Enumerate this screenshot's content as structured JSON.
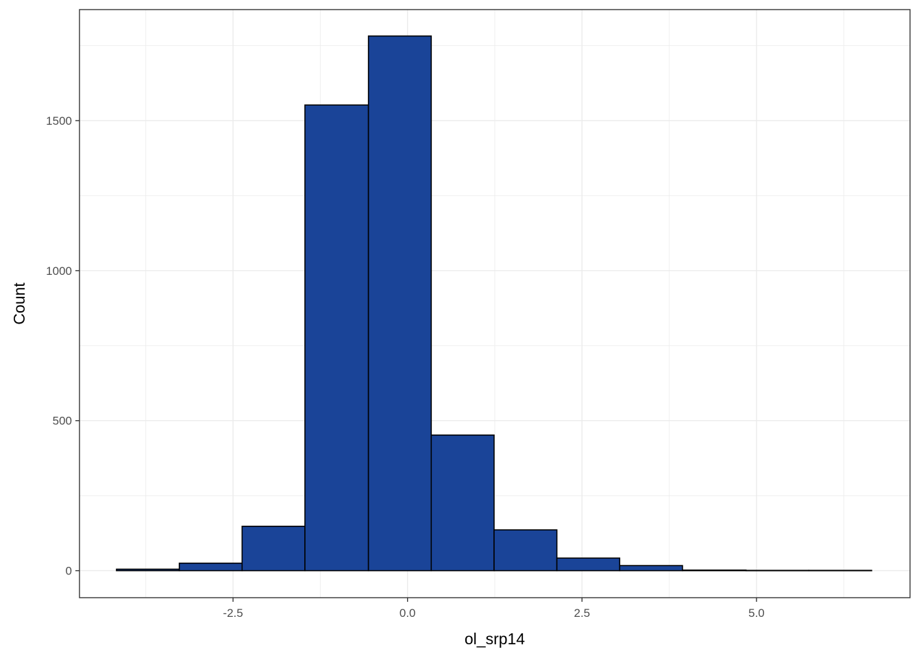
{
  "chart_data": {
    "type": "histogram",
    "title": "",
    "xlabel": "ol_srp14",
    "ylabel": "Count",
    "bins": [
      {
        "x0": -4.17,
        "x1": -3.27,
        "count": 5
      },
      {
        "x0": -3.27,
        "x1": -2.37,
        "count": 25
      },
      {
        "x0": -2.37,
        "x1": -1.47,
        "count": 148
      },
      {
        "x0": -1.47,
        "x1": -0.56,
        "count": 1552
      },
      {
        "x0": -0.56,
        "x1": 0.34,
        "count": 1782
      },
      {
        "x0": 0.34,
        "x1": 1.24,
        "count": 452
      },
      {
        "x0": 1.24,
        "x1": 2.14,
        "count": 136
      },
      {
        "x0": 2.14,
        "x1": 3.04,
        "count": 42
      },
      {
        "x0": 3.04,
        "x1": 3.94,
        "count": 17
      },
      {
        "x0": 3.94,
        "x1": 4.85,
        "count": 2
      },
      {
        "x0": 4.85,
        "x1": 5.75,
        "count": 1
      },
      {
        "x0": 5.75,
        "x1": 6.65,
        "count": 1
      }
    ],
    "xlim": [
      -4.7,
      7.2
    ],
    "ylim": [
      -90,
      1870
    ],
    "x_ticks": [
      -2.5,
      0.0,
      2.5,
      5.0
    ],
    "x_tick_labels": [
      "-2.5",
      "0.0",
      "2.5",
      "5.0"
    ],
    "y_ticks": [
      0,
      500,
      1000,
      1500
    ],
    "y_tick_labels": [
      "0",
      "500",
      "1000",
      "1500"
    ],
    "grid": true,
    "colors": {
      "fill": "#1a4498",
      "outline": "#000000",
      "grid": "#ebebeb",
      "panel_border": "#333333"
    }
  }
}
